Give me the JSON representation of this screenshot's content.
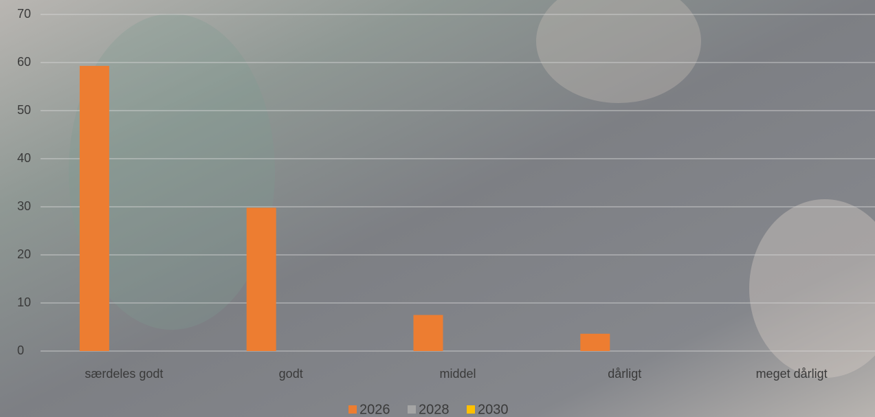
{
  "chart_data": {
    "type": "bar",
    "categories": [
      "særdeles godt",
      "godt",
      "middel",
      "dårligt",
      "meget dårligt"
    ],
    "series": [
      {
        "name": "2026",
        "color": "#ed7d31",
        "values": [
          59.3,
          29.8,
          7.5,
          3.6,
          0
        ]
      },
      {
        "name": "2028",
        "color": "#a5a5a5",
        "values": [
          null,
          null,
          null,
          null,
          null
        ]
      },
      {
        "name": "2030",
        "color": "#ffc000",
        "values": [
          null,
          null,
          null,
          null,
          null
        ]
      }
    ],
    "ylim": [
      0,
      70
    ],
    "yticks": [
      0,
      10,
      20,
      30,
      40,
      50,
      60,
      70
    ],
    "grid": true,
    "legend": "bottom"
  }
}
